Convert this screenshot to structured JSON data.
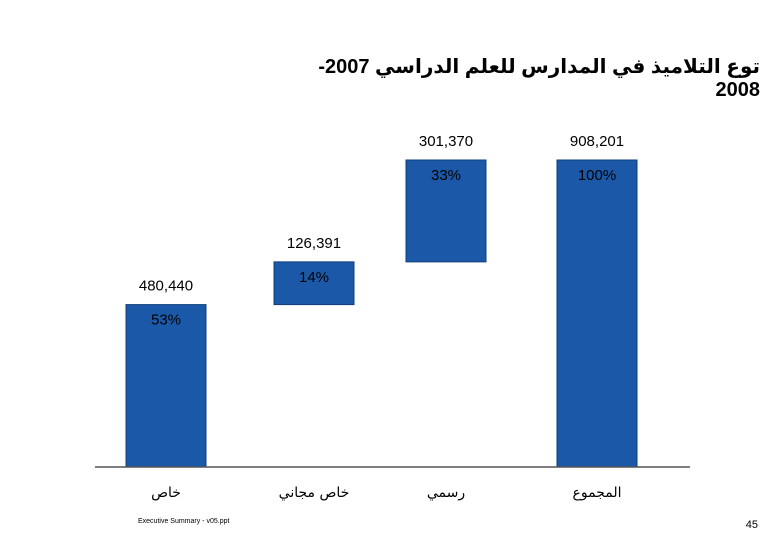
{
  "slide": {
    "title": "توع التلاميذ في المدارس للعلم الدراسي 2007-2008",
    "footer": "Executive Summary - v05.ppt",
    "page_number": "45"
  },
  "colors": {
    "bar_fill": "#1b59a8",
    "bar_stroke": "#0f3f7a",
    "axis": "#555555"
  },
  "chart_data": {
    "type": "bar",
    "subtype": "waterfall",
    "categories": [
      "خاص",
      "خاص مجاني",
      "رسمي",
      "المجموع"
    ],
    "values": [
      480440,
      126391,
      301370,
      908201
    ],
    "value_labels": [
      "480,440",
      "126,391",
      "301,370",
      "908,201"
    ],
    "percent_labels": [
      "53%",
      "14%",
      "33%",
      "100%"
    ],
    "total_index": 3,
    "ylim": [
      0,
      908201
    ],
    "grid": false,
    "legend": "none",
    "title": "",
    "xlabel": "",
    "ylabel": ""
  }
}
